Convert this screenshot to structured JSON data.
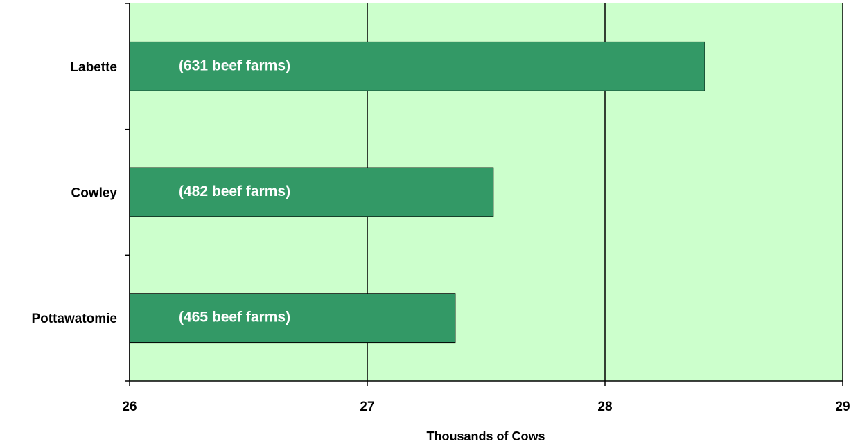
{
  "chart_data": {
    "type": "barh",
    "categories": [
      "Labette",
      "Cowley",
      "Pottawatomie"
    ],
    "values": [
      28.42,
      27.53,
      27.37
    ],
    "annotations": [
      "(631 beef farms)",
      "(482 beef farms)",
      "(465 beef farms)"
    ],
    "color": "#339966",
    "xlabel": "Thousands of Cows",
    "xlim": [
      26,
      29
    ],
    "xticks": [
      26,
      27,
      28,
      29
    ],
    "grid": true
  }
}
